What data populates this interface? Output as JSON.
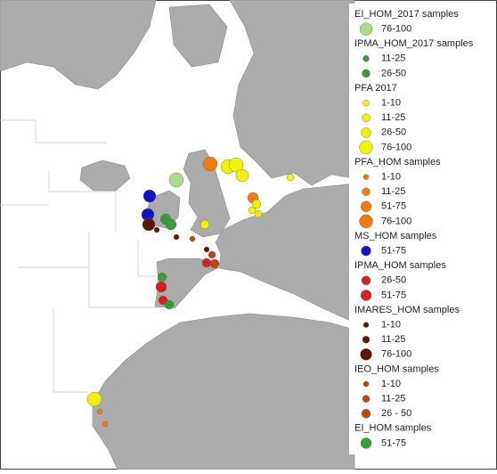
{
  "legend": {
    "groups": [
      {
        "title": "EI_HOM_2017 samples",
        "items": [
          "76-100"
        ],
        "color": "#a8dc8a"
      },
      {
        "title": "IPMA_HOM_2017 samples",
        "items": [
          "11-25",
          "26-50"
        ],
        "color": "#3c9c3c"
      },
      {
        "title": "PFA 2017",
        "items": [
          "1-10",
          "11-25",
          "26-50",
          "76-100"
        ],
        "color": "#f2f200"
      },
      {
        "title": "PFA_HOM samples",
        "items": [
          "1-10",
          "11-25",
          "51-75",
          "76-100"
        ],
        "color": "#f07c10"
      },
      {
        "title": "MS_HOM samples",
        "items": [
          "51-75"
        ],
        "color": "#1414c4"
      },
      {
        "title": "IPMA_HOM samples",
        "items": [
          "26-50",
          "51-75"
        ],
        "color": "#d42020"
      },
      {
        "title": "IMARES_HOM samples",
        "items": [
          "1-10",
          "11-25",
          "76-100"
        ],
        "color": "#5a1800"
      },
      {
        "title": "IEO_HOM samples",
        "items": [
          "1-10",
          "11-25",
          "26 - 50"
        ],
        "color": "#c0440e"
      },
      {
        "title": "EI_HOM samples",
        "items": [
          "51-75"
        ],
        "color": "#30a030"
      }
    ]
  }
}
